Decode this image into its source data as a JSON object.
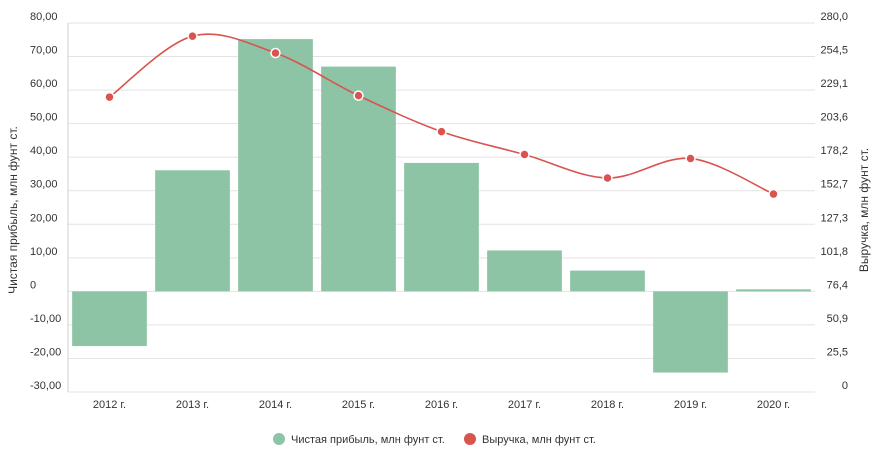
{
  "chart_data": {
    "type": "bar+line",
    "categories": [
      "2012 г.",
      "2013 г.",
      "2014 г.",
      "2015 г.",
      "2016 г.",
      "2017 г.",
      "2018 г.",
      "2019 г.",
      "2020 г."
    ],
    "series": [
      {
        "name": "Чистая прибыль, млн фунт ст.",
        "type": "bar",
        "axis": "left",
        "color": "#8dc4a5",
        "values": [
          -16.3,
          36.1,
          75.2,
          67.0,
          38.3,
          12.2,
          6.2,
          -24.2,
          0.6
        ]
      },
      {
        "name": "Выручка, млн фунт ст.",
        "type": "line",
        "axis": "right",
        "color": "#d9534f",
        "values": [
          223.8,
          270.0,
          257.2,
          224.9,
          197.6,
          180.2,
          162.4,
          177.2,
          150.2
        ]
      }
    ],
    "y_left": {
      "label": "Чистая прибыль, млн фунт ст.",
      "min": -30,
      "max": 80,
      "ticks": [
        80,
        70,
        60,
        50,
        40,
        30,
        20,
        10,
        0,
        -10,
        -20,
        -30
      ],
      "tick_labels": [
        "80,00",
        "70,00",
        "60,00",
        "50,00",
        "40,00",
        "30,00",
        "20,00",
        "10,00",
        "0",
        "-10,00",
        "-20,00",
        "-30,00"
      ]
    },
    "y_right": {
      "label": "Выручка, млн фунт ст.",
      "min": 0,
      "max": 280,
      "tick_labels": [
        "280,0",
        "254,5",
        "229,1",
        "203,6",
        "178,2",
        "152,7",
        "127,3",
        "101,8",
        "76,4",
        "50,9",
        "25,5",
        "0"
      ]
    },
    "grid": true,
    "legend_position": "bottom-center"
  }
}
